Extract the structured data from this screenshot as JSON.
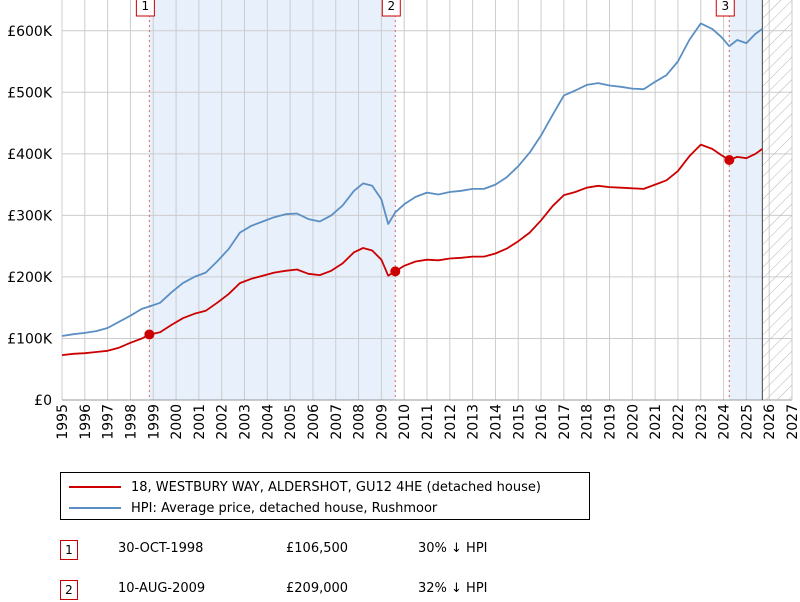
{
  "chart_data": {
    "type": "line",
    "x_range": [
      1995,
      2027
    ],
    "y_range": [
      0,
      650000
    ],
    "y_ticks": [
      {
        "value": 0,
        "label": "£0"
      },
      {
        "value": 100000,
        "label": "£100K"
      },
      {
        "value": 200000,
        "label": "£200K"
      },
      {
        "value": 300000,
        "label": "£300K"
      },
      {
        "value": 400000,
        "label": "£400K"
      },
      {
        "value": 500000,
        "label": "£500K"
      },
      {
        "value": 600000,
        "label": "£600K"
      }
    ],
    "x_ticks": [
      1995,
      1996,
      1997,
      1998,
      1999,
      2000,
      2001,
      2002,
      2003,
      2004,
      2005,
      2006,
      2007,
      2008,
      2009,
      2010,
      2011,
      2012,
      2013,
      2014,
      2015,
      2016,
      2017,
      2018,
      2019,
      2020,
      2021,
      2022,
      2023,
      2024,
      2025,
      2026,
      2027
    ],
    "forecast_start": 2025.7,
    "shaded_periods": [
      [
        1998.83,
        2009.61
      ],
      [
        2024.25,
        2025.7
      ]
    ],
    "series": [
      {
        "name": "18, WESTBURY WAY, ALDERSHOT, GU12 4HE (detached house)",
        "color": "#cc0000",
        "points": [
          [
            1995.0,
            73000
          ],
          [
            1995.5,
            75000
          ],
          [
            1996.0,
            76000
          ],
          [
            1996.5,
            78000
          ],
          [
            1997.0,
            80000
          ],
          [
            1997.5,
            85000
          ],
          [
            1998.0,
            93000
          ],
          [
            1998.5,
            100000
          ],
          [
            1998.83,
            106500
          ],
          [
            1999.3,
            110000
          ],
          [
            1999.8,
            122000
          ],
          [
            2000.3,
            133000
          ],
          [
            2000.8,
            140000
          ],
          [
            2001.3,
            145000
          ],
          [
            2001.8,
            158000
          ],
          [
            2002.3,
            172000
          ],
          [
            2002.8,
            190000
          ],
          [
            2003.3,
            197000
          ],
          [
            2003.8,
            202000
          ],
          [
            2004.3,
            207000
          ],
          [
            2004.8,
            210000
          ],
          [
            2005.3,
            212000
          ],
          [
            2005.8,
            205000
          ],
          [
            2006.3,
            203000
          ],
          [
            2006.8,
            210000
          ],
          [
            2007.3,
            222000
          ],
          [
            2007.8,
            240000
          ],
          [
            2008.2,
            247000
          ],
          [
            2008.6,
            243000
          ],
          [
            2009.0,
            228000
          ],
          [
            2009.3,
            202000
          ],
          [
            2009.61,
            209000
          ],
          [
            2010.0,
            218000
          ],
          [
            2010.5,
            225000
          ],
          [
            2011.0,
            228000
          ],
          [
            2011.5,
            227000
          ],
          [
            2012.0,
            230000
          ],
          [
            2012.5,
            231000
          ],
          [
            2013.0,
            233000
          ],
          [
            2013.5,
            233000
          ],
          [
            2014.0,
            238000
          ],
          [
            2014.5,
            246000
          ],
          [
            2015.0,
            258000
          ],
          [
            2015.5,
            272000
          ],
          [
            2016.0,
            292000
          ],
          [
            2016.5,
            315000
          ],
          [
            2017.0,
            333000
          ],
          [
            2017.5,
            338000
          ],
          [
            2018.0,
            345000
          ],
          [
            2018.5,
            348000
          ],
          [
            2019.0,
            346000
          ],
          [
            2019.5,
            345000
          ],
          [
            2020.0,
            344000
          ],
          [
            2020.5,
            343000
          ],
          [
            2021.0,
            350000
          ],
          [
            2021.5,
            357000
          ],
          [
            2022.0,
            372000
          ],
          [
            2022.5,
            396000
          ],
          [
            2023.0,
            415000
          ],
          [
            2023.5,
            408000
          ],
          [
            2023.9,
            398000
          ],
          [
            2024.25,
            390000
          ],
          [
            2024.6,
            395000
          ],
          [
            2025.0,
            393000
          ],
          [
            2025.4,
            400000
          ],
          [
            2025.7,
            408000
          ]
        ]
      },
      {
        "name": "HPI: Average price, detached house, Rushmoor",
        "color": "#5b8fc4",
        "points": [
          [
            1995.0,
            104000
          ],
          [
            1995.5,
            107000
          ],
          [
            1996.0,
            109000
          ],
          [
            1996.5,
            112000
          ],
          [
            1997.0,
            117000
          ],
          [
            1997.5,
            127000
          ],
          [
            1998.0,
            137000
          ],
          [
            1998.5,
            148000
          ],
          [
            1998.83,
            152000
          ],
          [
            1999.3,
            158000
          ],
          [
            1999.8,
            175000
          ],
          [
            2000.3,
            190000
          ],
          [
            2000.8,
            200000
          ],
          [
            2001.3,
            207000
          ],
          [
            2001.8,
            225000
          ],
          [
            2002.3,
            245000
          ],
          [
            2002.8,
            272000
          ],
          [
            2003.3,
            283000
          ],
          [
            2003.8,
            290000
          ],
          [
            2004.3,
            297000
          ],
          [
            2004.8,
            302000
          ],
          [
            2005.3,
            303000
          ],
          [
            2005.8,
            294000
          ],
          [
            2006.3,
            290000
          ],
          [
            2006.8,
            300000
          ],
          [
            2007.3,
            316000
          ],
          [
            2007.8,
            340000
          ],
          [
            2008.2,
            352000
          ],
          [
            2008.6,
            348000
          ],
          [
            2009.0,
            326000
          ],
          [
            2009.3,
            286000
          ],
          [
            2009.61,
            305000
          ],
          [
            2010.0,
            318000
          ],
          [
            2010.5,
            330000
          ],
          [
            2011.0,
            337000
          ],
          [
            2011.5,
            334000
          ],
          [
            2012.0,
            338000
          ],
          [
            2012.5,
            340000
          ],
          [
            2013.0,
            343000
          ],
          [
            2013.5,
            343000
          ],
          [
            2014.0,
            350000
          ],
          [
            2014.5,
            362000
          ],
          [
            2015.0,
            380000
          ],
          [
            2015.5,
            402000
          ],
          [
            2016.0,
            430000
          ],
          [
            2016.5,
            463000
          ],
          [
            2017.0,
            495000
          ],
          [
            2017.5,
            503000
          ],
          [
            2018.0,
            512000
          ],
          [
            2018.5,
            515000
          ],
          [
            2019.0,
            511000
          ],
          [
            2019.5,
            509000
          ],
          [
            2020.0,
            506000
          ],
          [
            2020.5,
            505000
          ],
          [
            2021.0,
            517000
          ],
          [
            2021.5,
            528000
          ],
          [
            2022.0,
            550000
          ],
          [
            2022.5,
            585000
          ],
          [
            2023.0,
            612000
          ],
          [
            2023.5,
            603000
          ],
          [
            2023.9,
            590000
          ],
          [
            2024.25,
            575000
          ],
          [
            2024.6,
            585000
          ],
          [
            2025.0,
            580000
          ],
          [
            2025.4,
            595000
          ],
          [
            2025.7,
            603000
          ]
        ]
      }
    ],
    "markers": [
      {
        "label": "1",
        "x": 1998.83,
        "y": 106500
      },
      {
        "label": "2",
        "x": 2009.61,
        "y": 209000
      },
      {
        "label": "3",
        "x": 2024.25,
        "y": 390000
      }
    ]
  },
  "legend": {
    "property_label": "18, WESTBURY WAY, ALDERSHOT, GU12 4HE (detached house)",
    "hpi_label": "HPI: Average price, detached house, Rushmoor"
  },
  "sales": [
    {
      "num": "1",
      "date": "30-OCT-1998",
      "price": "£106,500",
      "hpi": "30% ↓ HPI"
    },
    {
      "num": "2",
      "date": "10-AUG-2009",
      "price": "£209,000",
      "hpi": "32% ↓ HPI"
    }
  ]
}
